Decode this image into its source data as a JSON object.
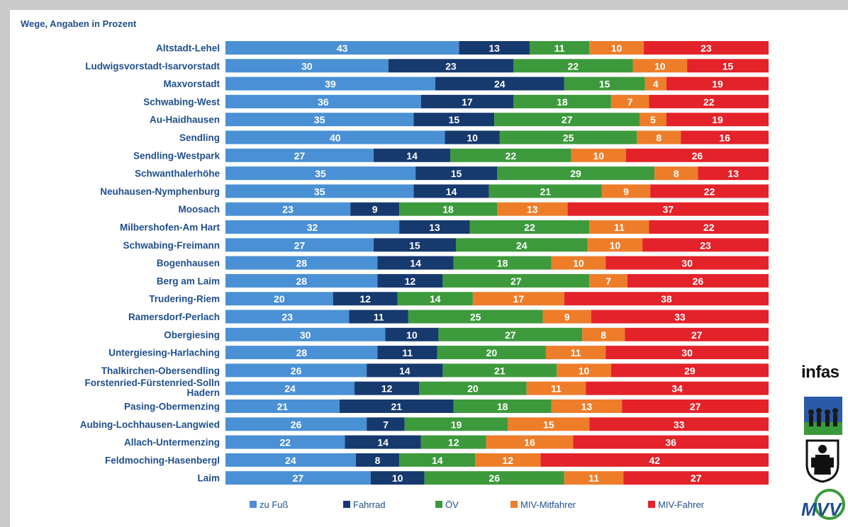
{
  "title": "Wege, Angaben in Prozent",
  "colors": {
    "zu_fuss": "#4a90d4",
    "fahrrad": "#16396e",
    "oev": "#3d9a3c",
    "miv_mitfahrer": "#ee7d2a",
    "miv_fahrer": "#e3222a"
  },
  "chart_data": {
    "type": "bar",
    "orientation": "horizontal",
    "stacked": true,
    "normalized": true,
    "legend_position": "bottom",
    "categories": [
      "Altstadt-Lehel",
      "Ludwigsvorstadt-Isarvorstadt",
      "Maxvorstadt",
      "Schwabing-West",
      "Au-Haidhausen",
      "Sendling",
      "Sendling-Westpark",
      "Schwanthalerhöhe",
      "Neuhausen-Nymphenburg",
      "Moosach",
      "Milbershofen-Am Hart",
      "Schwabing-Freimann",
      "Bogenhausen",
      "Berg am Laim",
      "Trudering-Riem",
      "Ramersdorf-Perlach",
      "Obergiesing",
      "Untergiesing-Harlaching",
      "Thalkirchen-Obersendling",
      "Forstenried-Fürstenried-Solln\nHadern",
      "Pasing-Obermenzing",
      "Aubing-Lochhausen-Langwied",
      "Allach-Untermenzing",
      "Feldmoching-Hasenbergl",
      "Laim"
    ],
    "series": [
      {
        "name": "zu Fuß",
        "color": "#4a90d4",
        "values": [
          43,
          30,
          39,
          36,
          35,
          40,
          27,
          35,
          35,
          23,
          32,
          27,
          28,
          28,
          20,
          23,
          30,
          28,
          26,
          24,
          21,
          26,
          22,
          24,
          27
        ]
      },
      {
        "name": "Fahrrad",
        "color": "#16396e",
        "values": [
          13,
          23,
          24,
          17,
          15,
          10,
          14,
          15,
          14,
          9,
          13,
          15,
          14,
          12,
          12,
          11,
          10,
          11,
          14,
          12,
          21,
          7,
          14,
          8,
          10
        ]
      },
      {
        "name": "ÖV",
        "color": "#3d9a3c",
        "values": [
          11,
          22,
          15,
          18,
          27,
          25,
          22,
          29,
          21,
          18,
          22,
          24,
          18,
          27,
          14,
          25,
          27,
          20,
          21,
          20,
          18,
          19,
          12,
          14,
          26
        ]
      },
      {
        "name": "MIV-Mitfahrer",
        "color": "#ee7d2a",
        "values": [
          10,
          10,
          4,
          7,
          5,
          8,
          10,
          8,
          9,
          13,
          11,
          10,
          10,
          7,
          17,
          9,
          8,
          11,
          10,
          11,
          13,
          15,
          16,
          12,
          11
        ]
      },
      {
        "name": "MIV-Fahrer",
        "color": "#e3222a",
        "values": [
          23,
          15,
          19,
          22,
          19,
          16,
          26,
          13,
          22,
          37,
          22,
          23,
          30,
          26,
          38,
          33,
          27,
          30,
          29,
          34,
          27,
          33,
          36,
          42,
          27
        ]
      }
    ]
  },
  "logos": {
    "infas": "infas",
    "mobil_icon": "mobility-people-icon",
    "crest_icon": "munich-crest-icon",
    "mvv_icon": "mvv-logo-icon",
    "mvv_text": "MVV"
  }
}
